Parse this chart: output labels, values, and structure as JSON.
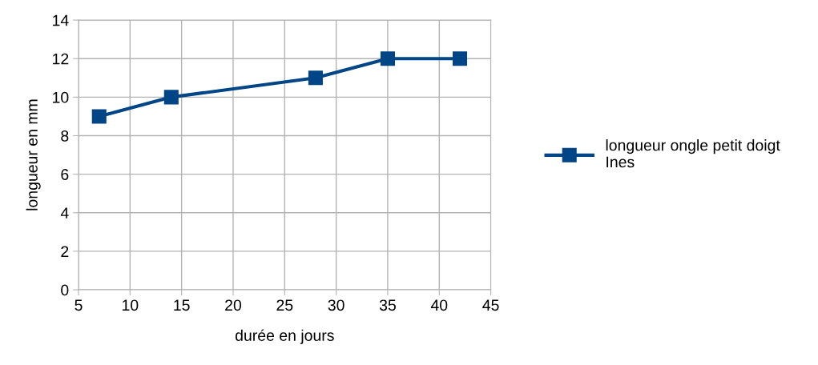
{
  "chart_data": {
    "type": "line",
    "xlabel": "durée en jours",
    "ylabel": "longueur en mm",
    "x": [
      7,
      14,
      28,
      35,
      42
    ],
    "series": [
      {
        "name": "longueur ongle petit doigt\nInes",
        "color": "#004586",
        "values": [
          9,
          10,
          11,
          12,
          12
        ]
      }
    ],
    "xlim": [
      5,
      45
    ],
    "xticks": [
      5,
      10,
      15,
      20,
      25,
      30,
      35,
      40,
      45
    ],
    "ylim": [
      0,
      14
    ],
    "yticks": [
      0,
      2,
      4,
      6,
      8,
      10,
      12,
      14
    ],
    "grid": true,
    "legend": "right",
    "marker": "square",
    "line_style": "solid"
  }
}
